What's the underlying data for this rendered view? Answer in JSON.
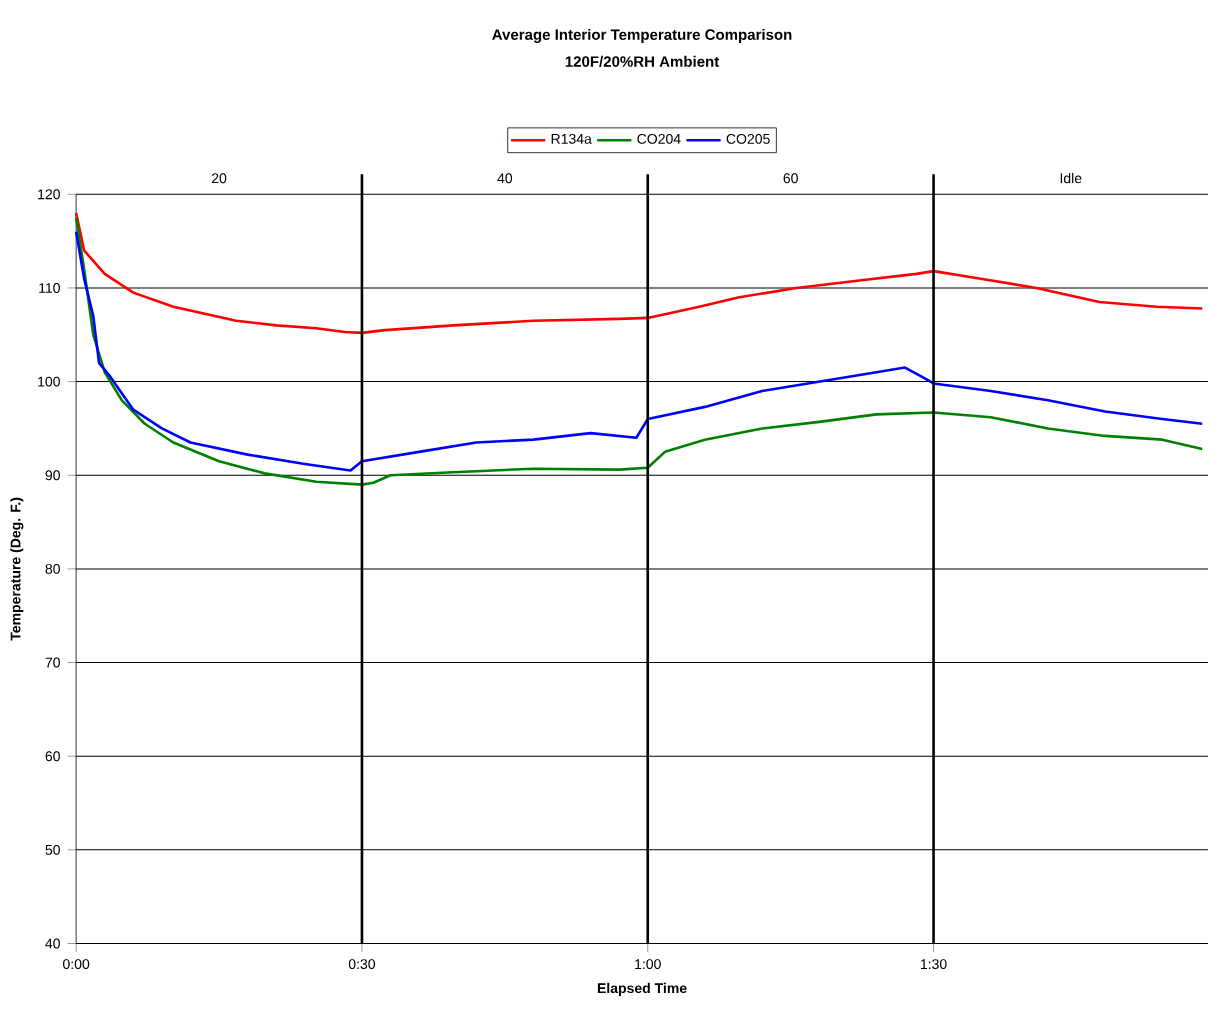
{
  "chart_data": {
    "type": "line",
    "title": "Average Interior Temperature Comparison",
    "subtitle": "120F/20%RH Ambient",
    "xlabel": "Elapsed Time",
    "ylabel": "Temperature (Deg. F.)",
    "xlim": [
      0,
      1.98
    ],
    "ylim": [
      40,
      120
    ],
    "xticks": [
      {
        "value": 0,
        "label": "0:00"
      },
      {
        "value": 0.5,
        "label": "0:30"
      },
      {
        "value": 1.0,
        "label": "1:00"
      },
      {
        "value": 1.5,
        "label": "1:30"
      }
    ],
    "yticks": [
      40,
      50,
      60,
      70,
      80,
      90,
      100,
      110,
      120
    ],
    "grid": "y",
    "legend": "top",
    "marker": "none",
    "line_style": "solid",
    "ref_lines": [
      {
        "axis": "x",
        "value": 0.5,
        "color": "#000000"
      },
      {
        "axis": "x",
        "value": 1.0,
        "color": "#000000"
      },
      {
        "axis": "x",
        "value": 1.5,
        "color": "#000000"
      }
    ],
    "annotations": [
      "20",
      "40",
      "60",
      "Idle"
    ],
    "series": [
      {
        "name": "R134a",
        "color": "#ff0000",
        "x": [
          0,
          0.014,
          0.05,
          0.1,
          0.17,
          0.28,
          0.35,
          0.42,
          0.47,
          0.5,
          0.54,
          0.66,
          0.8,
          0.95,
          1.0,
          1.09,
          1.16,
          1.26,
          1.37,
          1.47,
          1.5,
          1.58,
          1.68,
          1.79,
          1.89,
          1.97
        ],
        "values": [
          118,
          114,
          111.5,
          109.5,
          108,
          106.5,
          106,
          105.7,
          105.3,
          105.2,
          105.5,
          106,
          106.5,
          106.7,
          106.8,
          108,
          109,
          110,
          110.8,
          111.5,
          111.8,
          111,
          110,
          108.5,
          108,
          107.8
        ]
      },
      {
        "name": "CO204",
        "color": "#008000",
        "x": [
          0,
          0.014,
          0.03,
          0.05,
          0.08,
          0.12,
          0.17,
          0.25,
          0.33,
          0.42,
          0.5,
          0.52,
          0.55,
          0.65,
          0.8,
          0.95,
          1.0,
          1.03,
          1.1,
          1.2,
          1.3,
          1.4,
          1.5,
          1.6,
          1.7,
          1.8,
          1.9,
          1.97
        ],
        "values": [
          117.5,
          112,
          105,
          101,
          98,
          95.5,
          93.5,
          91.5,
          90.2,
          89.3,
          89,
          89.2,
          90,
          90.3,
          90.7,
          90.6,
          90.8,
          92.5,
          93.8,
          95,
          95.7,
          96.5,
          96.7,
          96.2,
          95,
          94.2,
          93.8,
          92.8
        ]
      },
      {
        "name": "CO205",
        "color": "#0000ff",
        "x": [
          0,
          0.014,
          0.03,
          0.04,
          0.06,
          0.1,
          0.15,
          0.2,
          0.3,
          0.4,
          0.48,
          0.5,
          0.6,
          0.7,
          0.8,
          0.9,
          0.98,
          1.0,
          1.1,
          1.2,
          1.3,
          1.4,
          1.45,
          1.48,
          1.5,
          1.6,
          1.7,
          1.8,
          1.9,
          1.97
        ],
        "values": [
          116,
          111,
          107,
          102,
          100.5,
          97,
          95,
          93.5,
          92.2,
          91.2,
          90.5,
          91.5,
          92.5,
          93.5,
          93.8,
          94.5,
          94,
          96,
          97.3,
          99,
          100,
          101,
          101.5,
          100.5,
          99.8,
          99,
          98,
          96.8,
          96,
          95.5
        ]
      }
    ]
  }
}
